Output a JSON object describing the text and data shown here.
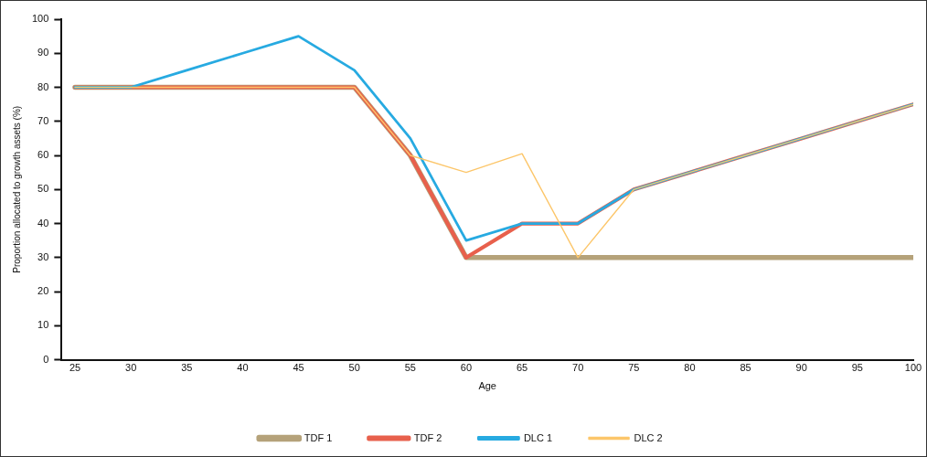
{
  "chart_data": {
    "type": "line",
    "xlabel": "Age",
    "ylabel": "Proportion allocated to growth assets (%)",
    "x": [
      25,
      30,
      35,
      40,
      45,
      50,
      55,
      60,
      65,
      70,
      75,
      80,
      85,
      90,
      95,
      100
    ],
    "series": [
      {
        "name": "TDF 1",
        "color": "#b5a27a",
        "values": [
          80,
          80,
          80,
          80,
          80,
          80,
          60,
          30,
          30,
          30,
          30,
          30,
          30,
          30,
          30,
          30
        ]
      },
      {
        "name": "TDF 2",
        "color": "#e8604c",
        "values": [
          80,
          80,
          80,
          80,
          80,
          80,
          60,
          30,
          40,
          40,
          50,
          55,
          60,
          65,
          70,
          75
        ]
      },
      {
        "name": "DLC 1",
        "color": "#27aae1",
        "values": [
          80,
          80,
          85,
          90,
          95,
          85,
          65,
          35,
          40,
          40,
          50,
          55,
          60,
          65,
          70,
          75
        ]
      },
      {
        "name": "DLC 2",
        "color": "#fcc66a",
        "values": [
          80,
          80,
          80,
          80,
          80,
          80,
          60,
          55,
          60.5,
          30,
          50,
          55,
          60,
          65,
          70,
          75
        ]
      }
    ],
    "xlim": [
      23.8,
      100
    ],
    "xticks": [
      25,
      30,
      35,
      40,
      45,
      50,
      55,
      60,
      65,
      70,
      75,
      80,
      85,
      90,
      95,
      100
    ],
    "ylim": [
      0,
      100
    ],
    "yticks": [
      0,
      10,
      20,
      30,
      40,
      50,
      60,
      70,
      80,
      90,
      100
    ],
    "grid": false,
    "legend": "bottom",
    "marker": "none",
    "line_style": "solid"
  }
}
